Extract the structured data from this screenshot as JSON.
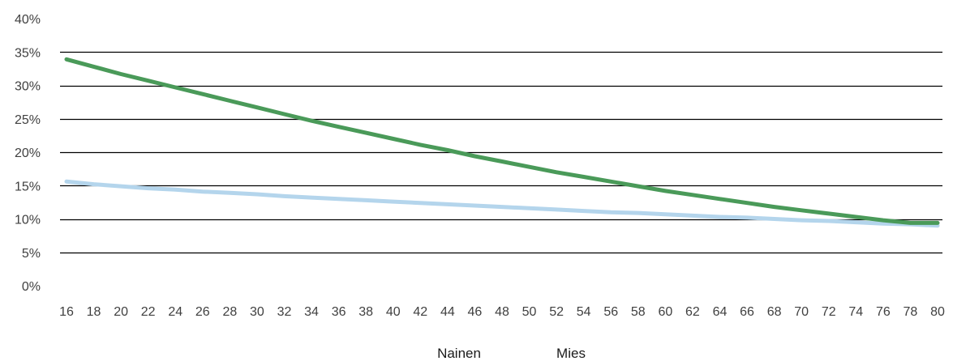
{
  "chart_data": {
    "type": "line",
    "xlabel": "",
    "ylabel": "",
    "x": [
      16,
      18,
      20,
      22,
      24,
      26,
      28,
      30,
      32,
      34,
      36,
      38,
      40,
      42,
      44,
      46,
      48,
      50,
      52,
      54,
      56,
      58,
      60,
      62,
      64,
      66,
      68,
      70,
      72,
      74,
      76,
      78,
      80
    ],
    "x_tick_labels": [
      "16",
      "18",
      "20",
      "22",
      "24",
      "26",
      "28",
      "30",
      "32",
      "34",
      "36",
      "38",
      "40",
      "42",
      "44",
      "46",
      "48",
      "50",
      "52",
      "54",
      "56",
      "58",
      "60",
      "62",
      "64",
      "66",
      "68",
      "70",
      "72",
      "74",
      "76",
      "78",
      "80"
    ],
    "ylim": [
      0,
      40
    ],
    "y_ticks": [
      0,
      5,
      10,
      15,
      20,
      25,
      30,
      35,
      40
    ],
    "y_tick_labels": [
      "0%",
      "5%",
      "10%",
      "15%",
      "20%",
      "25%",
      "30%",
      "35%",
      "40%"
    ],
    "grid": true,
    "legend_position": "bottom",
    "series": [
      {
        "name": "Nainen",
        "color": "#b4d5ec",
        "values": [
          15.6,
          15.2,
          14.9,
          14.6,
          14.4,
          14.1,
          13.9,
          13.7,
          13.4,
          13.2,
          13.0,
          12.8,
          12.6,
          12.4,
          12.2,
          12.0,
          11.8,
          11.6,
          11.4,
          11.2,
          11.0,
          10.9,
          10.7,
          10.5,
          10.3,
          10.2,
          10.0,
          9.8,
          9.7,
          9.5,
          9.3,
          9.2,
          9.0
        ]
      },
      {
        "name": "Mies",
        "color": "#4a9a59",
        "values": [
          33.9,
          32.8,
          31.7,
          30.7,
          29.7,
          28.7,
          27.7,
          26.7,
          25.7,
          24.7,
          23.8,
          22.9,
          22.0,
          21.1,
          20.3,
          19.4,
          18.6,
          17.8,
          17.0,
          16.3,
          15.6,
          14.9,
          14.2,
          13.6,
          13.0,
          12.4,
          11.8,
          11.3,
          10.8,
          10.3,
          9.8,
          9.4,
          9.4
        ]
      }
    ]
  }
}
